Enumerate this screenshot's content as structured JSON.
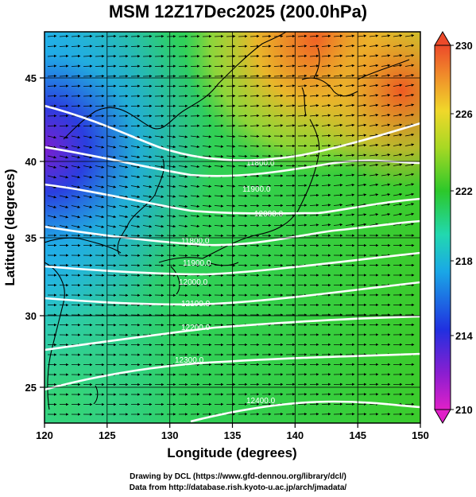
{
  "title": "MSM 12Z17Dec2025 (200.0hPa)",
  "axes": {
    "xlabel": "Longitude (degrees)",
    "ylabel": "Latitude  (degrees)",
    "x_ticks": [
      120,
      125,
      130,
      135,
      140,
      145,
      150
    ],
    "y_ticks": [
      25,
      30,
      35,
      40,
      45
    ],
    "x_tick_labels": [
      "120",
      "125",
      "130",
      "135",
      "140",
      "145",
      "150"
    ],
    "y_tick_labels": [
      "25",
      "30",
      "35",
      "40",
      "45"
    ],
    "xlim": [
      120,
      150
    ],
    "ylim": [
      22.4,
      47.6
    ]
  },
  "colorbar": {
    "min": 210,
    "max": 230,
    "labels": [
      "230",
      "226",
      "222",
      "218",
      "214",
      "210"
    ],
    "values": [
      230,
      226,
      222,
      218,
      214,
      210
    ]
  },
  "contours": {
    "color": "#ffffff",
    "labels": [
      "11800.0",
      "11900.0",
      "12000.0",
      "12100.0",
      "12200.0",
      "12300.0",
      "12400.0"
    ]
  },
  "colors": {
    "warm": "#e8501e",
    "neutral": "#2fc42a",
    "cool": "#1e6ee6",
    "cold": "#8c1ecc"
  },
  "footer": {
    "line1": "Drawing by DCL (https://www.gfd-dennou.org/library/dcl/)",
    "line2": "Data from http://database.rish.kyoto-u.ac.jp/arch/jmadata/"
  }
}
